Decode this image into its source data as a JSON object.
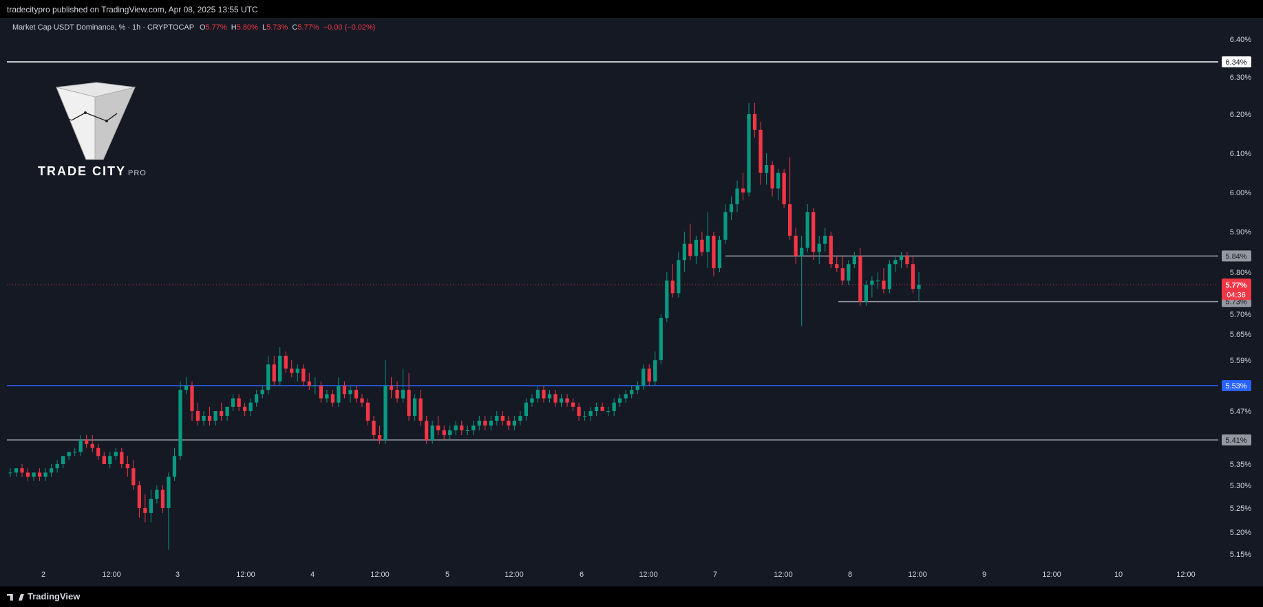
{
  "header": {
    "published": "tradecitypro published on TradingView.com, Apr 08, 2025 13:55 UTC"
  },
  "legend": {
    "symbol": "Market Cap USDT Dominance, % · 1h · CRYPTOCAP",
    "open_k": "O",
    "open": "5.77%",
    "high_k": "H",
    "high": "5.80%",
    "low_k": "L",
    "low": "5.73%",
    "close_k": "C",
    "close": "5.77%",
    "change": "−0.00 (−0.02%)"
  },
  "watermark": {
    "text": "TRADE CITY",
    "sub": "PRO"
  },
  "footer": {
    "brand": "TradingView"
  },
  "colors": {
    "up": "#089981",
    "down": "#f23645",
    "background": "#151924",
    "blue_line": "#2962ff"
  },
  "chart_data": {
    "type": "candlestick",
    "y_ticks": [
      "6.40%",
      "6.30%",
      "6.20%",
      "6.10%",
      "6.00%",
      "5.90%",
      "5.80%",
      "5.70%",
      "5.65%",
      "5.59%",
      "5.47%",
      "5.35%",
      "5.30%",
      "5.25%",
      "5.20%",
      "5.15%"
    ],
    "x_ticks": [
      "2",
      "12:00",
      "3",
      "12:00",
      "4",
      "12:00",
      "5",
      "12:00",
      "6",
      "12:00",
      "7",
      "12:00",
      "8",
      "12:00",
      "9",
      "12:00",
      "10",
      "12:00"
    ],
    "price_scale": "percent",
    "horizontal_levels": [
      {
        "label": "6.34%",
        "value": 6.34,
        "color": "#ffffff"
      },
      {
        "label": "5.84%",
        "value": 5.84,
        "color": "#9598a1"
      },
      {
        "label": "5.73%",
        "value": 5.73,
        "color": "#9598a1"
      },
      {
        "label": "5.53%",
        "value": 5.53,
        "color": "#2962ff"
      },
      {
        "label": "5.41%",
        "value": 5.41,
        "color": "#9598a1"
      }
    ],
    "current_price": {
      "label": "5.77%",
      "countdown": "04:36",
      "value": 5.77
    },
    "candles": [
      [
        5.33,
        5.34,
        5.32,
        5.33
      ],
      [
        5.33,
        5.34,
        5.32,
        5.34
      ],
      [
        5.34,
        5.35,
        5.32,
        5.33
      ],
      [
        5.33,
        5.34,
        5.31,
        5.32
      ],
      [
        5.32,
        5.33,
        5.31,
        5.33
      ],
      [
        5.33,
        5.34,
        5.31,
        5.32
      ],
      [
        5.32,
        5.34,
        5.31,
        5.33
      ],
      [
        5.33,
        5.35,
        5.32,
        5.34
      ],
      [
        5.34,
        5.36,
        5.33,
        5.35
      ],
      [
        5.35,
        5.37,
        5.34,
        5.37
      ],
      [
        5.37,
        5.38,
        5.36,
        5.38
      ],
      [
        5.38,
        5.39,
        5.37,
        5.38
      ],
      [
        5.38,
        5.42,
        5.37,
        5.41
      ],
      [
        5.41,
        5.42,
        5.39,
        5.4
      ],
      [
        5.4,
        5.42,
        5.38,
        5.39
      ],
      [
        5.39,
        5.4,
        5.36,
        5.37
      ],
      [
        5.37,
        5.38,
        5.35,
        5.35
      ],
      [
        5.35,
        5.38,
        5.34,
        5.37
      ],
      [
        5.37,
        5.39,
        5.36,
        5.38
      ],
      [
        5.38,
        5.39,
        5.34,
        5.35
      ],
      [
        5.35,
        5.37,
        5.32,
        5.34
      ],
      [
        5.34,
        5.36,
        5.29,
        5.3
      ],
      [
        5.3,
        5.31,
        5.23,
        5.25
      ],
      [
        5.25,
        5.28,
        5.22,
        5.24
      ],
      [
        5.24,
        5.29,
        5.22,
        5.27
      ],
      [
        5.27,
        5.3,
        5.26,
        5.29
      ],
      [
        5.29,
        5.3,
        5.24,
        5.25
      ],
      [
        5.25,
        5.33,
        5.16,
        5.32
      ],
      [
        5.32,
        5.39,
        5.31,
        5.37
      ],
      [
        5.37,
        5.54,
        5.36,
        5.52
      ],
      [
        5.52,
        5.55,
        5.51,
        5.53
      ],
      [
        5.53,
        5.54,
        5.45,
        5.47
      ],
      [
        5.47,
        5.49,
        5.44,
        5.45
      ],
      [
        5.45,
        5.47,
        5.44,
        5.46
      ],
      [
        5.46,
        5.48,
        5.44,
        5.45
      ],
      [
        5.45,
        5.47,
        5.44,
        5.47
      ],
      [
        5.47,
        5.49,
        5.45,
        5.46
      ],
      [
        5.46,
        5.48,
        5.45,
        5.48
      ],
      [
        5.48,
        5.51,
        5.47,
        5.5
      ],
      [
        5.5,
        5.51,
        5.47,
        5.48
      ],
      [
        5.48,
        5.49,
        5.46,
        5.47
      ],
      [
        5.47,
        5.5,
        5.46,
        5.49
      ],
      [
        5.49,
        5.52,
        5.48,
        5.51
      ],
      [
        5.51,
        5.53,
        5.5,
        5.52
      ],
      [
        5.52,
        5.6,
        5.51,
        5.58
      ],
      [
        5.58,
        5.6,
        5.53,
        5.54
      ],
      [
        5.54,
        5.62,
        5.53,
        5.6
      ],
      [
        5.6,
        5.61,
        5.56,
        5.57
      ],
      [
        5.57,
        5.59,
        5.55,
        5.56
      ],
      [
        5.56,
        5.58,
        5.54,
        5.57
      ],
      [
        5.57,
        5.58,
        5.53,
        5.54
      ],
      [
        5.54,
        5.56,
        5.52,
        5.53
      ],
      [
        5.53,
        5.55,
        5.51,
        5.53
      ],
      [
        5.53,
        5.54,
        5.49,
        5.5
      ],
      [
        5.5,
        5.52,
        5.49,
        5.51
      ],
      [
        5.51,
        5.52,
        5.48,
        5.49
      ],
      [
        5.49,
        5.55,
        5.48,
        5.53
      ],
      [
        5.53,
        5.54,
        5.5,
        5.51
      ],
      [
        5.51,
        5.53,
        5.49,
        5.52
      ],
      [
        5.52,
        5.53,
        5.49,
        5.5
      ],
      [
        5.5,
        5.51,
        5.48,
        5.49
      ],
      [
        5.49,
        5.5,
        5.44,
        5.45
      ],
      [
        5.45,
        5.46,
        5.41,
        5.42
      ],
      [
        5.42,
        5.44,
        5.4,
        5.41
      ],
      [
        5.41,
        5.59,
        5.4,
        5.53
      ],
      [
        5.53,
        5.55,
        5.5,
        5.52
      ],
      [
        5.52,
        5.54,
        5.49,
        5.5
      ],
      [
        5.5,
        5.57,
        5.49,
        5.52
      ],
      [
        5.52,
        5.56,
        5.45,
        5.46
      ],
      [
        5.46,
        5.51,
        5.45,
        5.5
      ],
      [
        5.5,
        5.52,
        5.44,
        5.45
      ],
      [
        5.45,
        5.46,
        5.4,
        5.41
      ],
      [
        5.41,
        5.45,
        5.4,
        5.44
      ],
      [
        5.44,
        5.46,
        5.42,
        5.43
      ],
      [
        5.43,
        5.44,
        5.41,
        5.42
      ],
      [
        5.42,
        5.44,
        5.41,
        5.43
      ],
      [
        5.43,
        5.45,
        5.42,
        5.44
      ],
      [
        5.44,
        5.45,
        5.42,
        5.43
      ],
      [
        5.43,
        5.44,
        5.42,
        5.43
      ],
      [
        5.43,
        5.45,
        5.42,
        5.44
      ],
      [
        5.44,
        5.46,
        5.43,
        5.45
      ],
      [
        5.45,
        5.46,
        5.43,
        5.44
      ],
      [
        5.44,
        5.46,
        5.43,
        5.45
      ],
      [
        5.45,
        5.47,
        5.44,
        5.46
      ],
      [
        5.46,
        5.47,
        5.44,
        5.45
      ],
      [
        5.45,
        5.46,
        5.43,
        5.44
      ],
      [
        5.44,
        5.46,
        5.43,
        5.45
      ],
      [
        5.45,
        5.47,
        5.44,
        5.46
      ],
      [
        5.46,
        5.5,
        5.45,
        5.49
      ],
      [
        5.49,
        5.51,
        5.48,
        5.5
      ],
      [
        5.5,
        5.53,
        5.49,
        5.52
      ],
      [
        5.52,
        5.53,
        5.49,
        5.5
      ],
      [
        5.5,
        5.52,
        5.49,
        5.51
      ],
      [
        5.51,
        5.52,
        5.48,
        5.49
      ],
      [
        5.49,
        5.51,
        5.48,
        5.5
      ],
      [
        5.5,
        5.51,
        5.48,
        5.49
      ],
      [
        5.49,
        5.5,
        5.47,
        5.48
      ],
      [
        5.48,
        5.49,
        5.45,
        5.46
      ],
      [
        5.46,
        5.47,
        5.45,
        5.46
      ],
      [
        5.46,
        5.48,
        5.45,
        5.47
      ],
      [
        5.47,
        5.49,
        5.46,
        5.48
      ],
      [
        5.48,
        5.49,
        5.47,
        5.47
      ],
      [
        5.47,
        5.48,
        5.46,
        5.47
      ],
      [
        5.47,
        5.5,
        5.46,
        5.49
      ],
      [
        5.49,
        5.51,
        5.48,
        5.5
      ],
      [
        5.5,
        5.52,
        5.49,
        5.51
      ],
      [
        5.51,
        5.53,
        5.5,
        5.52
      ],
      [
        5.52,
        5.54,
        5.51,
        5.53
      ],
      [
        5.53,
        5.58,
        5.52,
        5.57
      ],
      [
        5.57,
        5.58,
        5.53,
        5.54
      ],
      [
        5.54,
        5.61,
        5.53,
        5.59
      ],
      [
        5.59,
        5.7,
        5.58,
        5.69
      ],
      [
        5.69,
        5.8,
        5.68,
        5.78
      ],
      [
        5.78,
        5.82,
        5.74,
        5.75
      ],
      [
        5.75,
        5.85,
        5.74,
        5.83
      ],
      [
        5.83,
        5.9,
        5.8,
        5.87
      ],
      [
        5.87,
        5.92,
        5.83,
        5.84
      ],
      [
        5.84,
        5.89,
        5.82,
        5.88
      ],
      [
        5.88,
        5.9,
        5.84,
        5.85
      ],
      [
        5.85,
        5.95,
        5.81,
        5.89
      ],
      [
        5.89,
        5.9,
        5.79,
        5.81
      ],
      [
        5.81,
        5.89,
        5.8,
        5.88
      ],
      [
        5.88,
        5.97,
        5.87,
        5.95
      ],
      [
        5.95,
        5.99,
        5.93,
        5.97
      ],
      [
        5.97,
        6.03,
        5.95,
        6.01
      ],
      [
        6.01,
        6.05,
        5.98,
        6.0
      ],
      [
        6.0,
        6.23,
        5.99,
        6.2
      ],
      [
        6.2,
        6.23,
        6.14,
        6.16
      ],
      [
        6.16,
        6.18,
        6.02,
        6.05
      ],
      [
        6.05,
        6.1,
        6.02,
        6.07
      ],
      [
        6.07,
        6.08,
        5.99,
        6.01
      ],
      [
        6.01,
        6.06,
        5.98,
        6.05
      ],
      [
        6.05,
        6.06,
        5.96,
        5.97
      ],
      [
        5.97,
        6.09,
        5.88,
        5.89
      ],
      [
        5.89,
        5.91,
        5.82,
        5.84
      ],
      [
        5.84,
        5.89,
        5.67,
        5.86
      ],
      [
        5.86,
        5.97,
        5.85,
        5.95
      ],
      [
        5.95,
        5.96,
        5.83,
        5.85
      ],
      [
        5.85,
        5.89,
        5.82,
        5.87
      ],
      [
        5.87,
        5.91,
        5.85,
        5.89
      ],
      [
        5.89,
        5.9,
        5.81,
        5.82
      ],
      [
        5.82,
        5.84,
        5.8,
        5.81
      ],
      [
        5.81,
        5.84,
        5.77,
        5.78
      ],
      [
        5.78,
        5.83,
        5.77,
        5.82
      ],
      [
        5.82,
        5.85,
        5.81,
        5.84
      ],
      [
        5.84,
        5.86,
        5.72,
        5.73
      ],
      [
        5.73,
        5.78,
        5.72,
        5.77
      ],
      [
        5.77,
        5.79,
        5.74,
        5.78
      ],
      [
        5.78,
        5.8,
        5.76,
        5.78
      ],
      [
        5.78,
        5.81,
        5.75,
        5.76
      ],
      [
        5.76,
        5.83,
        5.75,
        5.82
      ],
      [
        5.82,
        5.84,
        5.8,
        5.83
      ],
      [
        5.83,
        5.85,
        5.81,
        5.84
      ],
      [
        5.84,
        5.85,
        5.81,
        5.82
      ],
      [
        5.82,
        5.84,
        5.75,
        5.76
      ],
      [
        5.76,
        5.8,
        5.73,
        5.77
      ]
    ]
  }
}
